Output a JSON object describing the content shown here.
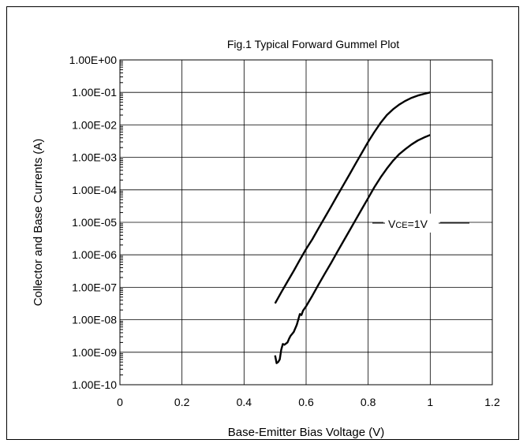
{
  "chart_data": {
    "type": "line",
    "title": "Fig.1 Typical Forward Gummel Plot",
    "xlabel": "Base-Emitter Bias Voltage (V)",
    "ylabel": "Collector and Base Currents (A)",
    "xlim": [
      0,
      1.2
    ],
    "ylim": [
      1e-10,
      1
    ],
    "yscale": "log",
    "grid": true,
    "xticks": [
      "0",
      "0.2",
      "0.4",
      "0.6",
      "0.8",
      "1",
      "1.2"
    ],
    "yticks": [
      "1.00E-10",
      "1.00E-09",
      "1.00E-08",
      "1.00E-07",
      "1.00E-06",
      "1.00E-05",
      "1.00E-04",
      "1.00E-03",
      "1.00E-02",
      "1.00E-01",
      "1.00E+00"
    ],
    "annotation": {
      "text_main": "V",
      "text_sub": "CE",
      "text_tail": "=1V"
    },
    "series": [
      {
        "x": [
          0.5,
          0.52,
          0.54,
          0.56,
          0.58,
          0.6,
          0.62,
          0.64,
          0.66,
          0.68,
          0.7,
          0.72,
          0.74,
          0.76,
          0.78,
          0.8,
          0.82,
          0.84,
          0.86,
          0.88,
          0.9,
          0.92,
          0.94,
          0.96,
          0.98,
          1.0
        ],
        "values": [
          3.2e-08,
          7e-08,
          1.5e-07,
          3.2e-07,
          7e-07,
          1.5e-06,
          3e-06,
          6.5e-06,
          1.4e-05,
          3e-05,
          6.5e-05,
          0.00014,
          0.0003,
          0.00065,
          0.0014,
          0.003,
          0.006,
          0.0115,
          0.02,
          0.03,
          0.042,
          0.055,
          0.068,
          0.08,
          0.09,
          0.1
        ]
      },
      {
        "x": [
          0.5,
          0.505,
          0.51,
          0.515,
          0.52,
          0.525,
          0.53,
          0.54,
          0.545,
          0.55,
          0.56,
          0.57,
          0.58,
          0.585,
          0.59,
          0.6,
          0.62,
          0.64,
          0.66,
          0.68,
          0.7,
          0.72,
          0.74,
          0.76,
          0.78,
          0.8,
          0.82,
          0.84,
          0.86,
          0.88,
          0.9,
          0.92,
          0.94,
          0.96,
          0.98,
          1.0
        ],
        "values": [
          8e-10,
          4.6e-10,
          5e-10,
          6e-10,
          1.2e-09,
          1.8e-09,
          1.7e-09,
          2e-09,
          2.6e-09,
          3.2e-09,
          4.2e-09,
          7e-09,
          1.5e-08,
          1.4e-08,
          1.9e-08,
          2.6e-08,
          5.5e-08,
          1.2e-07,
          2.6e-07,
          5.5e-07,
          1.2e-06,
          2.6e-06,
          5.6e-06,
          1.2e-05,
          2.6e-05,
          5.6e-05,
          0.00012,
          0.00024,
          0.00045,
          0.00078,
          0.00125,
          0.0018,
          0.0025,
          0.0033,
          0.0041,
          0.0049
        ]
      }
    ]
  }
}
